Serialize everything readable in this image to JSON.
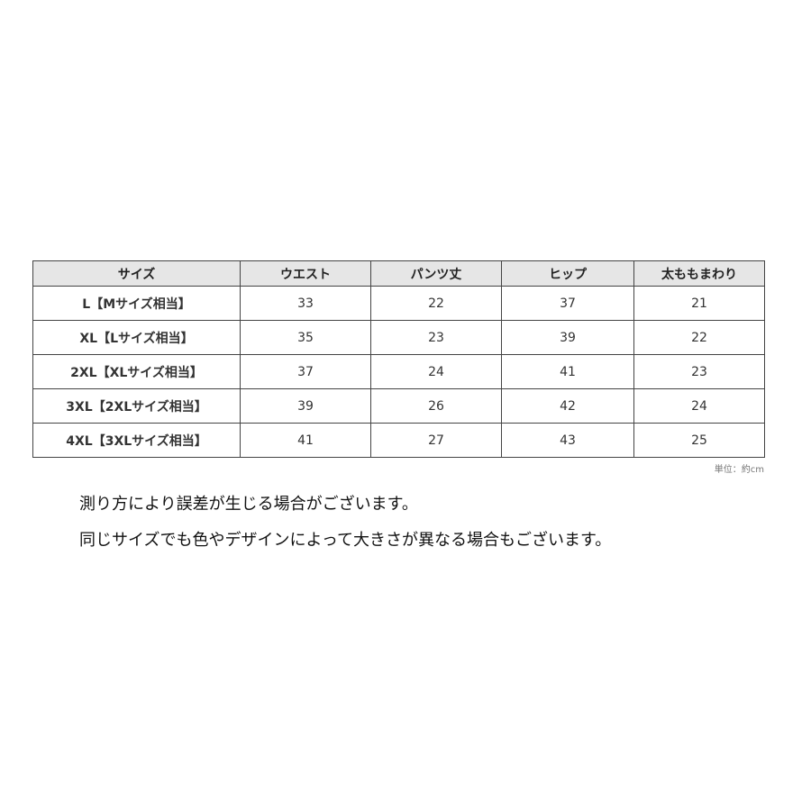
{
  "table": {
    "headers": [
      "サイズ",
      "ウエスト",
      "パンツ丈",
      "ヒップ",
      "太ももまわり"
    ],
    "rows": [
      [
        "L【Mサイズ相当】",
        "33",
        "22",
        "37",
        "21"
      ],
      [
        "XL【Lサイズ相当】",
        "35",
        "23",
        "39",
        "22"
      ],
      [
        "2XL【XLサイズ相当】",
        "37",
        "24",
        "41",
        "23"
      ],
      [
        "3XL【2XLサイズ相当】",
        "39",
        "26",
        "42",
        "24"
      ],
      [
        "4XL【3XLサイズ相当】",
        "41",
        "27",
        "43",
        "25"
      ]
    ]
  },
  "unit_note": "単位：約cm",
  "notes": [
    "測り方により誤差が生じる場合がございます。",
    "同じサイズでも色やデザインによって大きさが異なる場合もございます。"
  ]
}
